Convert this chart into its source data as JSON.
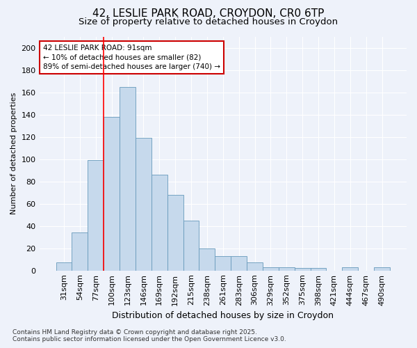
{
  "title1": "42, LESLIE PARK ROAD, CROYDON, CR0 6TP",
  "title2": "Size of property relative to detached houses in Croydon",
  "xlabel": "Distribution of detached houses by size in Croydon",
  "ylabel": "Number of detached properties",
  "bar_labels": [
    "31sqm",
    "54sqm",
    "77sqm",
    "100sqm",
    "123sqm",
    "146sqm",
    "169sqm",
    "192sqm",
    "215sqm",
    "238sqm",
    "261sqm",
    "283sqm",
    "306sqm",
    "329sqm",
    "352sqm",
    "375sqm",
    "398sqm",
    "421sqm",
    "444sqm",
    "467sqm",
    "490sqm"
  ],
  "bar_values": [
    7,
    34,
    99,
    138,
    165,
    119,
    86,
    68,
    45,
    20,
    13,
    13,
    7,
    3,
    3,
    2,
    2,
    0,
    3,
    0,
    3
  ],
  "bar_color": "#c6d9ec",
  "bar_edge_color": "#6699bb",
  "background_color": "#eef2fa",
  "grid_color": "#ffffff",
  "red_line_x": 3.0,
  "annotation_text": "42 LESLIE PARK ROAD: 91sqm\n← 10% of detached houses are smaller (82)\n89% of semi-detached houses are larger (740) →",
  "annotation_box_facecolor": "#ffffff",
  "annotation_box_edgecolor": "#cc0000",
  "footer_text": "Contains HM Land Registry data © Crown copyright and database right 2025.\nContains public sector information licensed under the Open Government Licence v3.0.",
  "ylim": [
    0,
    210
  ],
  "yticks": [
    0,
    20,
    40,
    60,
    80,
    100,
    120,
    140,
    160,
    180,
    200
  ],
  "title1_fontsize": 11,
  "title2_fontsize": 9.5,
  "xlabel_fontsize": 9,
  "ylabel_fontsize": 8,
  "tick_fontsize": 8,
  "footer_fontsize": 6.5
}
